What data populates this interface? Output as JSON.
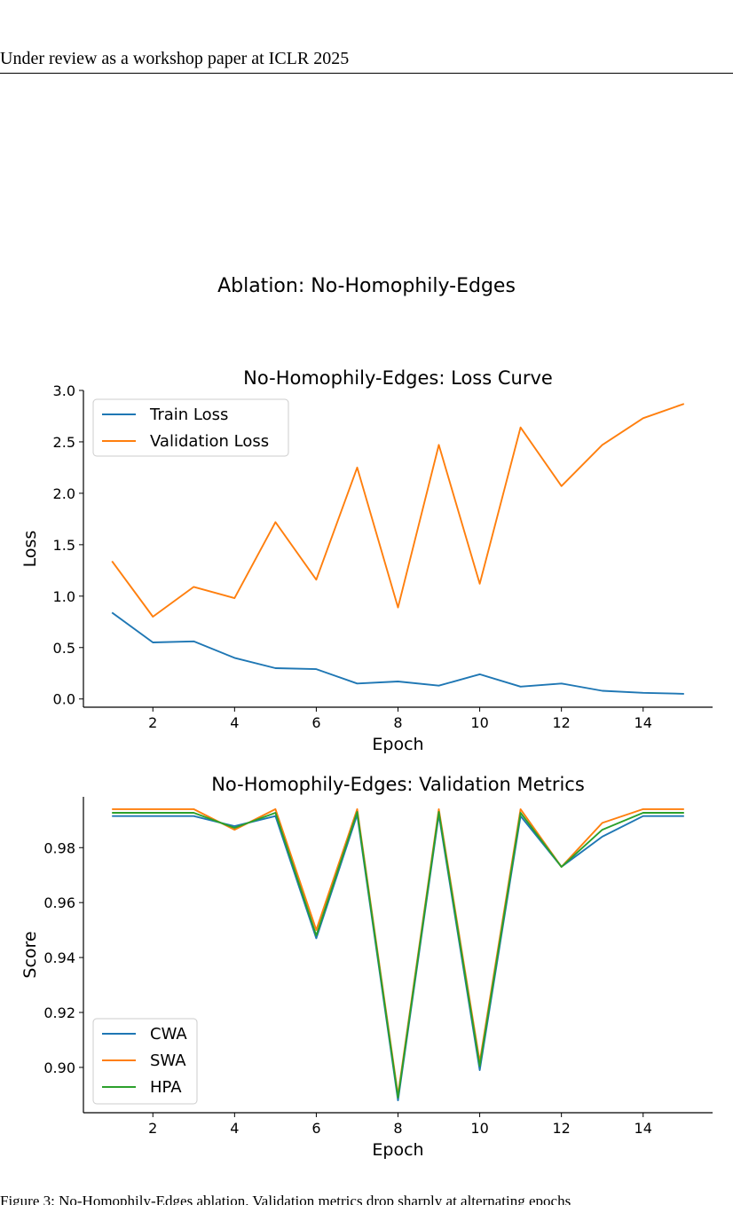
{
  "header": {
    "text": "Under review as a workshop paper at ICLR 2025"
  },
  "figure": {
    "suptitle": "Ablation: No-Homophily-Edges"
  },
  "caption": {
    "text": "Figure 3: No-Homophily-Edges ablation. Validation metrics drop sharply at alternating epochs"
  },
  "colors": {
    "train": "#1f77b4",
    "validation": "#ff7f0e",
    "cwa": "#1f77b4",
    "swa": "#ff7f0e",
    "hpa": "#2ca02c"
  },
  "chart_data": [
    {
      "type": "line",
      "title": "No-Homophily-Edges: Loss Curve",
      "xlabel": "Epoch",
      "ylabel": "Loss",
      "x": [
        1,
        2,
        3,
        4,
        5,
        6,
        7,
        8,
        9,
        10,
        11,
        12,
        13,
        14,
        15
      ],
      "xlim": [
        0.3,
        15.7
      ],
      "ylim": [
        -0.08,
        3.0
      ],
      "xticks": [
        2,
        4,
        6,
        8,
        10,
        12,
        14
      ],
      "yticks": [
        0.0,
        0.5,
        1.0,
        1.5,
        2.0,
        2.5,
        3.0
      ],
      "ytick_labels": [
        "0.0",
        "0.5",
        "1.0",
        "1.5",
        "2.0",
        "2.5",
        "3.0"
      ],
      "legend": "upper-left",
      "grid": false,
      "series": [
        {
          "name": "Train Loss",
          "color": "#1f77b4",
          "values": [
            0.84,
            0.55,
            0.56,
            0.4,
            0.3,
            0.29,
            0.15,
            0.17,
            0.13,
            0.24,
            0.12,
            0.15,
            0.08,
            0.06,
            0.05
          ]
        },
        {
          "name": "Validation Loss",
          "color": "#ff7f0e",
          "values": [
            1.34,
            0.8,
            1.09,
            0.98,
            1.72,
            1.16,
            2.25,
            0.89,
            2.47,
            1.12,
            2.64,
            2.07,
            2.47,
            2.73,
            2.87
          ]
        }
      ]
    },
    {
      "type": "line",
      "title": "No-Homophily-Edges: Validation Metrics",
      "xlabel": "Epoch",
      "ylabel": "Score",
      "x": [
        1,
        2,
        3,
        4,
        5,
        6,
        7,
        8,
        9,
        10,
        11,
        12,
        13,
        14,
        15
      ],
      "xlim": [
        0.3,
        15.7
      ],
      "ylim": [
        0.8835,
        0.9985
      ],
      "xticks": [
        2,
        4,
        6,
        8,
        10,
        12,
        14
      ],
      "yticks": [
        0.9,
        0.92,
        0.94,
        0.96,
        0.98
      ],
      "ytick_labels": [
        "0.90",
        "0.92",
        "0.94",
        "0.96",
        "0.98"
      ],
      "legend": "lower-left",
      "grid": false,
      "series": [
        {
          "name": "CWA",
          "color": "#1f77b4",
          "values": [
            0.9915,
            0.9915,
            0.9915,
            0.9878,
            0.9915,
            0.947,
            0.992,
            0.888,
            0.992,
            0.899,
            0.9915,
            0.973,
            0.984,
            0.9915,
            0.9915
          ]
        },
        {
          "name": "SWA",
          "color": "#ff7f0e",
          "values": [
            0.994,
            0.994,
            0.994,
            0.9865,
            0.994,
            0.95,
            0.994,
            0.89,
            0.994,
            0.902,
            0.994,
            0.973,
            0.989,
            0.994,
            0.994
          ]
        },
        {
          "name": "HPA",
          "color": "#2ca02c",
          "values": [
            0.9927,
            0.9927,
            0.9927,
            0.9872,
            0.9927,
            0.948,
            0.993,
            0.889,
            0.993,
            0.9005,
            0.9927,
            0.973,
            0.9865,
            0.9927,
            0.9927
          ]
        }
      ]
    }
  ]
}
